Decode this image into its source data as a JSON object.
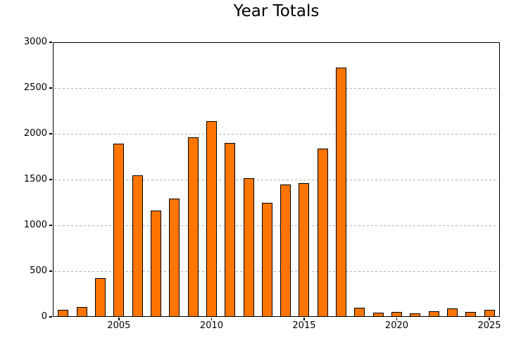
{
  "title": "Year Totals",
  "chart_data": {
    "type": "bar",
    "title": "Year Totals",
    "categories": [
      2002,
      2003,
      2004,
      2005,
      2006,
      2007,
      2008,
      2009,
      2010,
      2011,
      2012,
      2013,
      2014,
      2015,
      2016,
      2017,
      2018,
      2019,
      2020,
      2021,
      2022,
      2023,
      2024,
      2025
    ],
    "values": [
      80,
      110,
      420,
      1890,
      1545,
      1160,
      1290,
      1960,
      2135,
      1900,
      1515,
      1245,
      1445,
      1460,
      1840,
      2720,
      100,
      45,
      55,
      35,
      65,
      90,
      55,
      80
    ],
    "xlabel": "",
    "ylabel": "",
    "xlim": [
      2001.43,
      2025.57
    ],
    "ylim": [
      0,
      3000
    ],
    "yticks": [
      0,
      500,
      1000,
      1500,
      2000,
      2500,
      3000
    ],
    "xticks": [
      2005,
      2010,
      2015,
      2020,
      2025
    ],
    "grid": "horizontal dashed",
    "legend_position": "none",
    "bar_fill_color": "#ff7500",
    "bar_edge_color": "#000000",
    "grid_color": "#b0b0b0",
    "axis_color": "#000000",
    "background_color": "#ffffff"
  }
}
